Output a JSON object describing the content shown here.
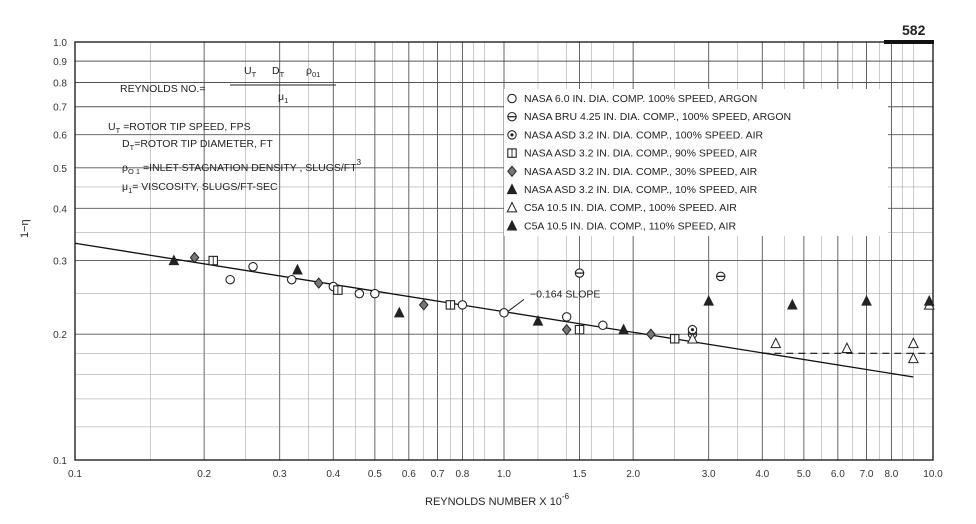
{
  "page_number": "582",
  "chart_data": {
    "type": "scatter",
    "xlabel": "REYNOLDS NUMBER X 10",
    "xlabel_exponent": "-6",
    "ylabel": "1−η",
    "x_scale": "log",
    "y_scale": "log",
    "xlim": [
      0.1,
      10.0
    ],
    "ylim": [
      0.1,
      1.0
    ],
    "grid": true,
    "x_ticks": [
      {
        "v": 0.1,
        "t": "0.1"
      },
      {
        "v": 0.2,
        "t": "0.2"
      },
      {
        "v": 0.3,
        "t": "0.3"
      },
      {
        "v": 0.4,
        "t": "0.4"
      },
      {
        "v": 0.5,
        "t": "0.5"
      },
      {
        "v": 0.6,
        "t": "0.6"
      },
      {
        "v": 0.7,
        "t": "0.7"
      },
      {
        "v": 0.8,
        "t": "0.8"
      },
      {
        "v": 1.0,
        "t": "1.0"
      },
      {
        "v": 1.5,
        "t": "1.5"
      },
      {
        "v": 2.0,
        "t": "2.0"
      },
      {
        "v": 3.0,
        "t": "3.0"
      },
      {
        "v": 4.0,
        "t": "4.0"
      },
      {
        "v": 5.0,
        "t": "5.0"
      },
      {
        "v": 6.0,
        "t": "6.0"
      },
      {
        "v": 7.0,
        "t": "7.0"
      },
      {
        "v": 8.0,
        "t": "8.0"
      },
      {
        "v": 10.0,
        "t": "10.0"
      }
    ],
    "y_ticks": [
      {
        "v": 0.1,
        "t": "0.1"
      },
      {
        "v": 0.2,
        "t": "0.2"
      },
      {
        "v": 0.3,
        "t": "0.3"
      },
      {
        "v": 0.4,
        "t": "0.4"
      },
      {
        "v": 0.5,
        "t": "0.5"
      },
      {
        "v": 0.6,
        "t": "0.6"
      },
      {
        "v": 0.7,
        "t": "0.7"
      },
      {
        "v": 0.8,
        "t": "0.8"
      },
      {
        "v": 0.9,
        "t": "0.9"
      },
      {
        "v": 1.0,
        "t": "1.0"
      }
    ],
    "minor_x_grid": [
      0.15,
      0.25,
      0.35,
      0.45,
      0.55,
      0.65,
      0.75,
      0.85,
      0.9,
      1.2,
      1.4,
      1.6,
      1.8,
      2.5,
      3.5,
      4.5,
      5.5,
      6.5,
      7.5,
      8.5,
      9.0
    ],
    "minor_y_grid": [
      0.12,
      0.14,
      0.16,
      0.18,
      0.25,
      0.35,
      0.45
    ],
    "legend_position": "top-right",
    "series": [
      {
        "name": "NASA 6.0 IN. DIA. COMP. 100% SPEED, ARGON",
        "marker": "circle-open",
        "points": [
          [
            0.23,
            0.27
          ],
          [
            0.26,
            0.29
          ],
          [
            0.32,
            0.27
          ],
          [
            0.4,
            0.26
          ],
          [
            0.46,
            0.25
          ],
          [
            0.5,
            0.25
          ],
          [
            0.8,
            0.235
          ],
          [
            1.0,
            0.225
          ],
          [
            1.4,
            0.22
          ],
          [
            1.7,
            0.21
          ]
        ]
      },
      {
        "name": "NASA BRU 4.25 IN. DIA. COMP., 100% SPEED, ARGON",
        "marker": "circle-theta",
        "points": [
          [
            1.5,
            0.28
          ],
          [
            2.75,
            0.2
          ],
          [
            3.2,
            0.275
          ]
        ]
      },
      {
        "name": "NASA ASD 3.2 IN. DIA. COMP., 100% SPEED. AIR",
        "marker": "circle-dot",
        "points": [
          [
            2.75,
            0.205
          ]
        ]
      },
      {
        "name": "NASA ASD 3.2 IN. DIA. COMP.,  90% SPEED, AIR",
        "marker": "square-dot",
        "points": [
          [
            0.21,
            0.3
          ],
          [
            0.41,
            0.255
          ],
          [
            0.75,
            0.235
          ],
          [
            1.5,
            0.205
          ],
          [
            2.5,
            0.195
          ]
        ]
      },
      {
        "name": "NASA ASD 3.2 IN. DIA. COMP.,  30% SPEED, AIR",
        "marker": "diamond",
        "points": [
          [
            0.19,
            0.305
          ],
          [
            0.37,
            0.265
          ],
          [
            0.65,
            0.235
          ],
          [
            1.4,
            0.205
          ],
          [
            2.2,
            0.2
          ]
        ]
      },
      {
        "name": "NASA ASD 3.2 IN. DIA. COMP.,  10% SPEED, AIR",
        "marker": "triangle-filled",
        "points": [
          [
            0.17,
            0.3
          ],
          [
            0.33,
            0.285
          ],
          [
            0.57,
            0.225
          ],
          [
            1.2,
            0.215
          ],
          [
            1.9,
            0.205
          ],
          [
            3.0,
            0.24
          ],
          [
            4.7,
            0.235
          ],
          [
            7.0,
            0.24
          ]
        ]
      },
      {
        "name": "C5A 10.5 IN. DIA. COMP., 100% SPEED. AIR",
        "marker": "triangle-open",
        "points": [
          [
            2.75,
            0.195
          ],
          [
            4.3,
            0.19
          ],
          [
            6.3,
            0.185
          ],
          [
            9.0,
            0.19
          ],
          [
            9.0,
            0.175
          ],
          [
            9.8,
            0.235
          ]
        ]
      },
      {
        "name": "C5A 10.5 IN. DIA. COMP., 110% SPEED, AIR",
        "marker": "triangle-filled",
        "points": [
          [
            9.8,
            0.24
          ]
        ]
      }
    ],
    "fit_line": {
      "from": [
        0.1,
        0.33
      ],
      "to": [
        9.0,
        0.158
      ],
      "label": "−0.164 SLOPE",
      "label_at": [
        1.15,
        0.245
      ]
    },
    "dashed_line": {
      "from": [
        4.0,
        0.18
      ],
      "to": [
        10.0,
        0.18
      ]
    }
  },
  "annotations": {
    "reynolds_lhs": "REYNOLDS NO.=",
    "num_ut": "U",
    "num_ut_sub": "T",
    "num_dt": "D",
    "num_dt_sub": "T",
    "num_rho": "ρ",
    "num_rho_sub": "01",
    "den_mu": "μ",
    "den_mu_sub": "1",
    "def1_sym": "U",
    "def1_sub": "T",
    "def1_text": " =ROTOR TIP SPEED, FPS",
    "def2_sym": "D",
    "def2_sub": "T",
    "def2_text": "=ROTOR TIP DIAMETER, FT",
    "def3_sym": "ρ",
    "def3_sub": "O 1",
    "def3_text": " =INLET STAGNATION DENSITY , SLUGS/FT",
    "def3_sup": "3",
    "def4_sym": "μ",
    "def4_sub": "1",
    "def4_text": "= VISCOSITY, SLUGS/FT-SEC"
  }
}
